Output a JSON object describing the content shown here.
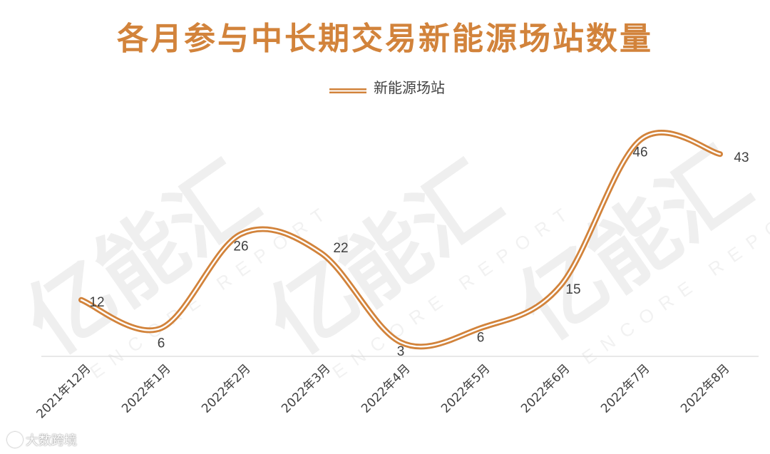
{
  "chart_data": {
    "type": "line",
    "title": "各月参与中长期交易新能源场站数量",
    "categories": [
      "2021年12月",
      "2022年1月",
      "2022年2月",
      "2022年3月",
      "2022年4月",
      "2022年5月",
      "2022年6月",
      "2022年7月",
      "2022年8月"
    ],
    "series": [
      {
        "name": "新能源场站",
        "values": [
          12,
          6,
          26,
          22,
          3,
          6,
          15,
          46,
          43
        ]
      }
    ],
    "legend_position": "top-center",
    "smooth": true,
    "data_labels": true,
    "grid": false,
    "y_axis_visible": false,
    "colors": {
      "line": "#d2833b",
      "title": "#d2833b"
    }
  },
  "watermark": {
    "text": "亿能汇",
    "subtext": "ENCORE REPORT"
  },
  "footer": {
    "source": "大数跨境",
    "icon": "logo-icon"
  }
}
